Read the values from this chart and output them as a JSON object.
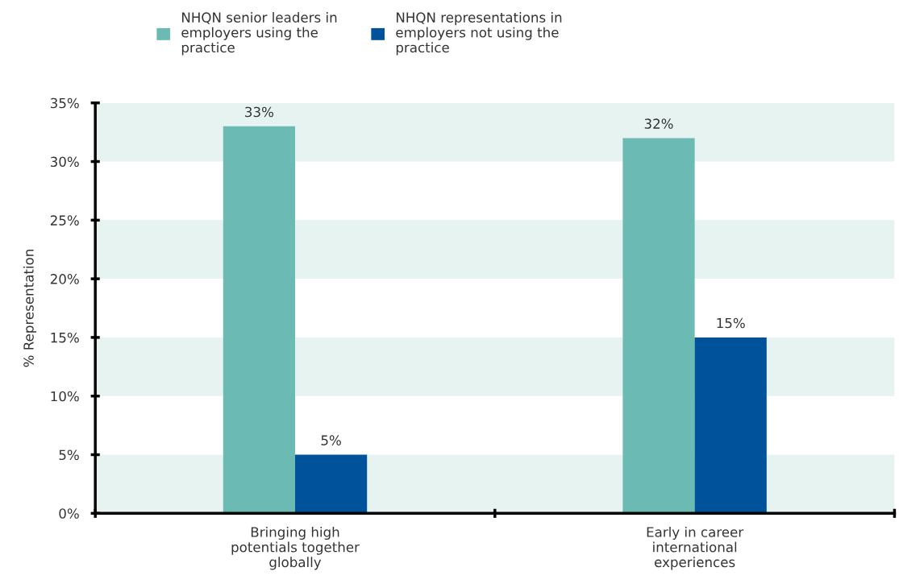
{
  "chart_data": {
    "type": "bar",
    "ylabel": "% Representation",
    "categories": [
      "Bringing high\npotentials together\nglobally",
      "Early in career\ninternational\nexperiences"
    ],
    "series": [
      {
        "name": "NHQN senior leaders in\nemployers using the\npractice",
        "color": "#6bbab3",
        "values": [
          33,
          32
        ],
        "value_labels": [
          "33%",
          "32%"
        ]
      },
      {
        "name": "NHQN representations in\nemployers not using the\npractice",
        "color": "#00539b",
        "values": [
          5,
          15
        ],
        "value_labels": [
          "5%",
          "15%"
        ]
      }
    ],
    "ylim": [
      0,
      35
    ],
    "yticks": [
      {
        "value": 0,
        "label": "0%"
      },
      {
        "value": 5,
        "label": "5%"
      },
      {
        "value": 10,
        "label": "10%"
      },
      {
        "value": 15,
        "label": "15%"
      },
      {
        "value": 20,
        "label": "20%"
      },
      {
        "value": 25,
        "label": "25%"
      },
      {
        "value": 30,
        "label": "30%"
      },
      {
        "value": 35,
        "label": "35%"
      }
    ],
    "bands": [
      {
        "axis": "y",
        "from": 0,
        "to": 5,
        "color": "#e6f3f1"
      },
      {
        "axis": "y",
        "from": 10,
        "to": 15,
        "color": "#e6f3f1"
      },
      {
        "axis": "y",
        "from": 20,
        "to": 25,
        "color": "#e6f3f1"
      },
      {
        "axis": "y",
        "from": 30,
        "to": 35,
        "color": "#e6f3f1"
      }
    ],
    "grid": false,
    "legend": "top"
  }
}
